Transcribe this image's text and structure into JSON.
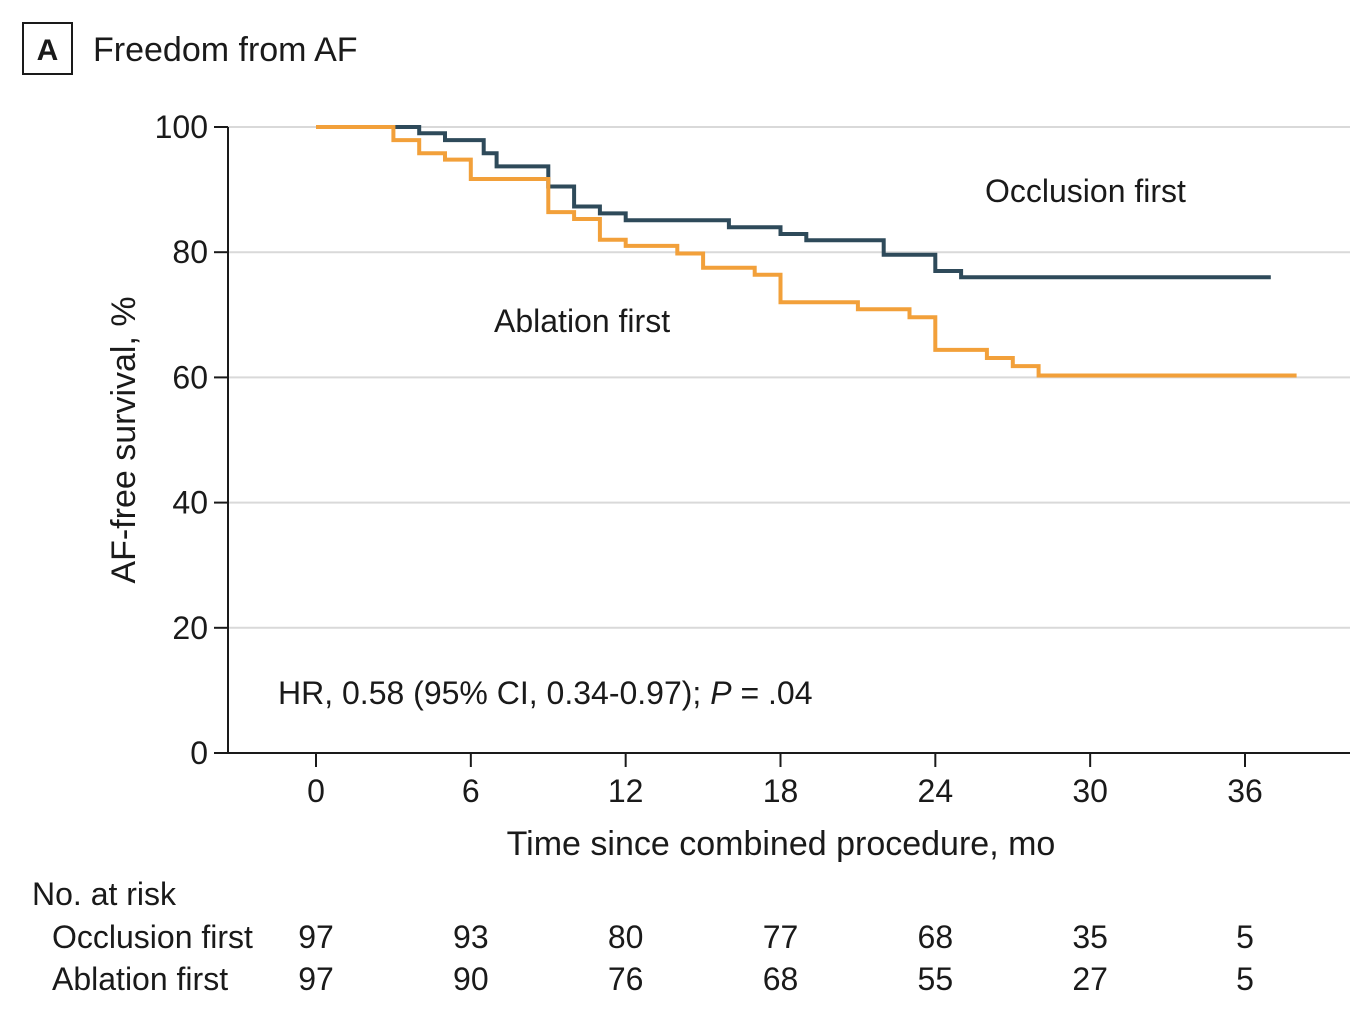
{
  "panel": {
    "letter": "A",
    "title": "Freedom from AF"
  },
  "chart_data": {
    "type": "line",
    "step": true,
    "xlabel": "Time since combined procedure, mo",
    "ylabel": "AF-free survival, %",
    "xlim": [
      -3,
      40.5
    ],
    "ylim": [
      0,
      100
    ],
    "xticks": [
      0,
      6,
      12,
      18,
      24,
      30,
      36
    ],
    "yticks": [
      0,
      20,
      40,
      60,
      80,
      100
    ],
    "grid": "horizontal",
    "annotation": {
      "prefix": "HR, 0.58 (95% CI, 0.34-0.97); ",
      "p_symbol": "P",
      "p_value": " = .04"
    },
    "series": [
      {
        "name": "Occlusion first",
        "color": "#2e4a5a",
        "points": [
          [
            0,
            100
          ],
          [
            4,
            99
          ],
          [
            5,
            97.9
          ],
          [
            6,
            97.9
          ],
          [
            6.5,
            95.8
          ],
          [
            7,
            93.7
          ],
          [
            9,
            90.5
          ],
          [
            10,
            87.3
          ],
          [
            11,
            86.2
          ],
          [
            12,
            85.1
          ],
          [
            14,
            85.1
          ],
          [
            16,
            84
          ],
          [
            18,
            82.9
          ],
          [
            19,
            81.9
          ],
          [
            22,
            79.6
          ],
          [
            24,
            77
          ],
          [
            25,
            76
          ],
          [
            37,
            76
          ]
        ]
      },
      {
        "name": "Ablation first",
        "color": "#f2a03a",
        "points": [
          [
            0,
            100
          ],
          [
            3,
            97.9
          ],
          [
            4,
            95.8
          ],
          [
            5,
            94.8
          ],
          [
            6,
            91.7
          ],
          [
            9,
            86.4
          ],
          [
            10,
            85.3
          ],
          [
            11,
            82
          ],
          [
            12,
            81
          ],
          [
            14,
            79.8
          ],
          [
            15,
            77.5
          ],
          [
            17,
            76.4
          ],
          [
            18,
            72
          ],
          [
            21,
            70.9
          ],
          [
            23,
            69.6
          ],
          [
            24,
            64.4
          ],
          [
            26,
            63.1
          ],
          [
            27,
            61.8
          ],
          [
            28,
            60.3
          ],
          [
            38,
            60.3
          ]
        ]
      }
    ],
    "risk_table": {
      "title": "No. at risk",
      "times": [
        0,
        6,
        12,
        18,
        24,
        30,
        36
      ],
      "rows": [
        {
          "label": "Occlusion first",
          "values": [
            97,
            93,
            80,
            77,
            68,
            35,
            5
          ]
        },
        {
          "label": "Ablation first",
          "values": [
            97,
            90,
            76,
            68,
            55,
            27,
            5
          ]
        }
      ]
    }
  }
}
